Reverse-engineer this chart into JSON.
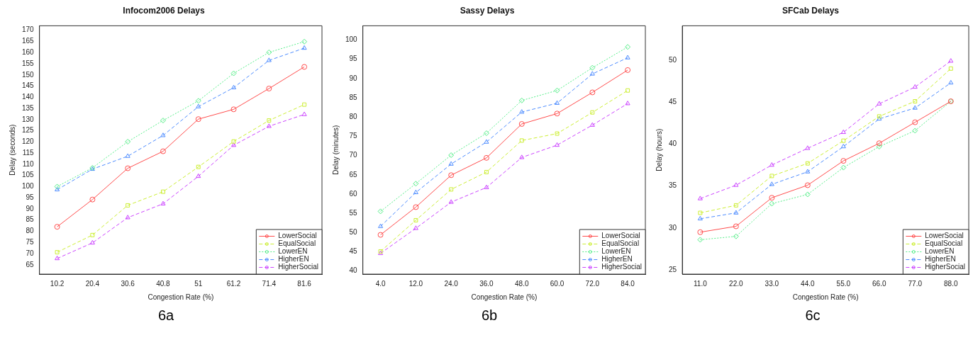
{
  "chart_data": [
    {
      "type": "line",
      "title": "Infocom2006 Delays",
      "xlabel": "Congestion Rate (%)",
      "ylabel": "Delay (seconds)",
      "annotations": [
        "6a"
      ],
      "categories": [
        "10.2",
        "20.4",
        "30.6",
        "40.8",
        "51",
        "61.2",
        "71.4",
        "81.6"
      ],
      "ylim": [
        60.8,
        172
      ],
      "yticks": [
        65,
        70,
        75,
        80,
        85,
        90,
        95,
        100,
        105,
        110,
        115,
        120,
        125,
        130,
        135,
        140,
        145,
        150,
        155,
        160,
        165,
        170
      ],
      "grid": false,
      "legend": "bottom right",
      "series": [
        {
          "name": "LowerSocial",
          "color": "#ff4d4d",
          "marker": "circle",
          "line_style": "solid",
          "values": [
            82,
            94.2,
            108.2,
            115.8,
            130.2,
            134.6,
            143.9,
            153.6
          ]
        },
        {
          "name": "EqualSocial",
          "color": "#ccee33",
          "marker": "square",
          "line_style": "dashed",
          "values": [
            70.6,
            78.3,
            91.6,
            97.7,
            108.8,
            120.2,
            129.6,
            136.7
          ]
        },
        {
          "name": "LowerEN",
          "color": "#55ee88",
          "marker": "diamond",
          "line_style": "dotted",
          "values": [
            100,
            108.4,
            120.1,
            129.6,
            138.4,
            150.7,
            160.1,
            164.9
          ]
        },
        {
          "name": "HigherEN",
          "color": "#4d8cff",
          "marker": "triangle",
          "line_style": "dashed",
          "values": [
            98.6,
            107.8,
            113.6,
            122.9,
            135.8,
            144.3,
            156.5,
            162
          ]
        },
        {
          "name": "HigherSocial",
          "color": "#cc44ff",
          "marker": "triangle",
          "line_style": "dashed",
          "values": [
            67.8,
            74.8,
            86.1,
            92.3,
            104.6,
            118.5,
            127,
            132.3
          ]
        }
      ]
    },
    {
      "type": "line",
      "title": "Sassy Delays",
      "xlabel": "Congestion Rate (%)",
      "ylabel": "Delay (minutes)",
      "annotations": [
        "6b"
      ],
      "categories": [
        "4.0",
        "12.0",
        "24.0",
        "36.0",
        "48.0",
        "60.0",
        "72.0",
        "84.0"
      ],
      "ylim": [
        39.2,
        103.7
      ],
      "yticks": [
        40,
        45,
        50,
        55,
        60,
        65,
        70,
        75,
        80,
        85,
        90,
        95,
        100
      ],
      "grid": false,
      "legend": "bottom right",
      "series": [
        {
          "name": "LowerSocial",
          "color": "#ff4d4d",
          "marker": "circle",
          "line_style": "solid",
          "values": [
            49.4,
            56.6,
            64.9,
            69.4,
            78.2,
            80.9,
            86.4,
            92.2
          ]
        },
        {
          "name": "EqualSocial",
          "color": "#ccee33",
          "marker": "square",
          "line_style": "dashed",
          "values": [
            45.1,
            53.2,
            61.2,
            65.7,
            73.9,
            75.7,
            81.2,
            86.9
          ]
        },
        {
          "name": "LowerEN",
          "color": "#55ee88",
          "marker": "diamond",
          "line_style": "dotted",
          "values": [
            55.5,
            62.7,
            70.1,
            75.8,
            84.3,
            86.9,
            92.8,
            98.2
          ]
        },
        {
          "name": "HigherEN",
          "color": "#4d8cff",
          "marker": "triangle",
          "line_style": "dashed",
          "values": [
            51.6,
            60.4,
            67.8,
            73.5,
            81.3,
            83.6,
            91.2,
            95.4
          ]
        },
        {
          "name": "HigherSocial",
          "color": "#cc44ff",
          "marker": "triangle",
          "line_style": "dashed",
          "values": [
            44.6,
            51.1,
            57.9,
            61.7,
            69.5,
            72.7,
            77.9,
            83.5
          ]
        }
      ]
    },
    {
      "type": "line",
      "title": "SFCab Delays",
      "xlabel": "Congestion Rate (%)",
      "ylabel": "Delay (hours)",
      "annotations": [
        "6c"
      ],
      "categories": [
        "11.0",
        "22.0",
        "33.0",
        "44.0",
        "55.0",
        "66.0",
        "77.0",
        "88.0"
      ],
      "ylim": [
        24.5,
        54.1
      ],
      "yticks": [
        25,
        30,
        35,
        40,
        45,
        50
      ],
      "grid": false,
      "legend": "bottom right",
      "series": [
        {
          "name": "LowerSocial",
          "color": "#ff4d4d",
          "marker": "circle",
          "line_style": "solid",
          "values": [
            29.5,
            30.2,
            33.6,
            35.1,
            38.0,
            40.1,
            42.6,
            45.1
          ]
        },
        {
          "name": "EqualSocial",
          "color": "#ccee33",
          "marker": "square",
          "line_style": "dashed",
          "values": [
            31.8,
            32.7,
            36.2,
            37.7,
            40.4,
            43.3,
            45.1,
            49.0
          ]
        },
        {
          "name": "LowerEN",
          "color": "#55ee88",
          "marker": "diamond",
          "line_style": "dotted",
          "values": [
            28.6,
            29.0,
            32.9,
            34.0,
            37.2,
            39.7,
            41.6,
            45.1
          ]
        },
        {
          "name": "HigherEN",
          "color": "#4d8cff",
          "marker": "triangle",
          "line_style": "dashed",
          "values": [
            31.1,
            31.8,
            35.2,
            36.7,
            39.7,
            43.0,
            44.3,
            47.3
          ]
        },
        {
          "name": "HigherSocial",
          "color": "#cc44ff",
          "marker": "triangle",
          "line_style": "dashed",
          "values": [
            33.5,
            35.1,
            37.5,
            39.5,
            41.4,
            44.8,
            46.8,
            49.9
          ]
        }
      ]
    }
  ]
}
